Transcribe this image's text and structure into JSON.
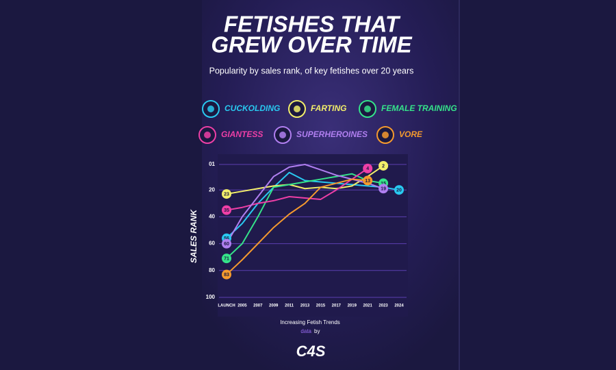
{
  "chart_data": {
    "type": "line",
    "title_lines": [
      "FETISHES THAT",
      "GREW OVER TIME"
    ],
    "subtitle": "Popularity by sales rank, of key fetishes over 20 years",
    "y_label": "SALES RANK",
    "categories": [
      "LAUNCH",
      "2005",
      "2007",
      "2009",
      "2011",
      "2013",
      "2015",
      "2017",
      "2019",
      "2021",
      "2023",
      "2024"
    ],
    "ylim": [
      1,
      100
    ],
    "yticks": [
      {
        "value": 1,
        "label": "01"
      },
      20,
      40,
      60,
      80,
      100
    ],
    "y_inverted": true,
    "grid": true,
    "series": [
      {
        "name": "CUCKOLDING",
        "color": "#29c9f0",
        "values": [
          56,
          45,
          30,
          18,
          7,
          13,
          14,
          15,
          16,
          17,
          18,
          20
        ]
      },
      {
        "name": "FARTING",
        "color": "#f2ee6a",
        "values": [
          23,
          21,
          19,
          17,
          16,
          19,
          18,
          19,
          17,
          10,
          2,
          null
        ]
      },
      {
        "name": "FEMALE TRAINING",
        "color": "#35e38a",
        "values": [
          71,
          60,
          40,
          18,
          16,
          14,
          12,
          10,
          8,
          13,
          15,
          null
        ]
      },
      {
        "name": "GIANTESS",
        "color": "#ee3fa6",
        "values": [
          35,
          33,
          30,
          28,
          25,
          26,
          27,
          20,
          12,
          4,
          null,
          null
        ]
      },
      {
        "name": "SUPERHEROINES",
        "color": "#b07ff0",
        "values": [
          60,
          40,
          25,
          10,
          3,
          1,
          5,
          9,
          12,
          15,
          19,
          null
        ]
      },
      {
        "name": "VORE",
        "color": "#f59a2e",
        "values": [
          83,
          72,
          60,
          48,
          38,
          30,
          18,
          15,
          12,
          13,
          null,
          null
        ]
      }
    ],
    "caption": "Increasing Fetish Trends",
    "source_word": "data",
    "source_by": "by",
    "logo": "C4S"
  }
}
